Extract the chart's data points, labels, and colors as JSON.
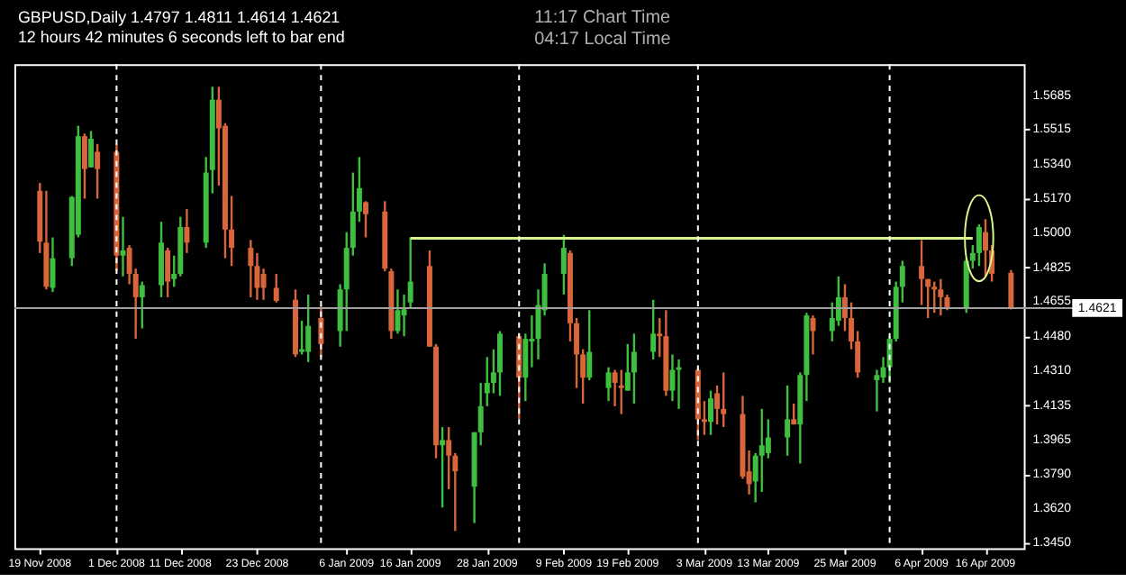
{
  "chart_data": {
    "type": "candlestick",
    "title": "GBPUSD,Daily  1.4797 1.4811 1.4614 1.4621",
    "subtitle": "12 hours 42 minutes 6 seconds left to bar end",
    "annotations": [
      "11:17  Chart Time",
      "04:17  Local Time"
    ],
    "xlim": [
      "2008-11-15",
      "2009-04-22"
    ],
    "xticks": [
      {
        "value": "2008-11-19",
        "label": "19 Nov 2008"
      },
      {
        "value": "2008-12-01",
        "label": "1 Dec 2008"
      },
      {
        "value": "2008-12-11",
        "label": "11 Dec 2008"
      },
      {
        "value": "2008-12-23",
        "label": "23 Dec 2008"
      },
      {
        "value": "2009-01-06",
        "label": "6 Jan 2009"
      },
      {
        "value": "2009-01-16",
        "label": "16 Jan 2009"
      },
      {
        "value": "2009-01-28",
        "label": "28 Jan 2009"
      },
      {
        "value": "2009-02-09",
        "label": "9 Feb 2009"
      },
      {
        "value": "2009-02-19",
        "label": "19 Feb 2009"
      },
      {
        "value": "2009-03-03",
        "label": "3 Mar 2009"
      },
      {
        "value": "2009-03-13",
        "label": "13 Mar 2009"
      },
      {
        "value": "2009-03-25",
        "label": "25 Mar 2009"
      },
      {
        "value": "2009-04-06",
        "label": "6 Apr 2009"
      },
      {
        "value": "2009-04-16",
        "label": "16 Apr 2009"
      }
    ],
    "ylim": [
      1.342,
      1.584
    ],
    "yticks": [
      {
        "value": 1.5685,
        "label": "1.5685"
      },
      {
        "value": 1.5515,
        "label": "1.5515"
      },
      {
        "value": 1.534,
        "label": "1.5340"
      },
      {
        "value": 1.517,
        "label": "1.5170"
      },
      {
        "value": 1.5,
        "label": "1.5000"
      },
      {
        "value": 1.4825,
        "label": "1.4825"
      },
      {
        "value": 1.4655,
        "label": "1.4655"
      },
      {
        "value": 1.448,
        "label": "1.4480"
      },
      {
        "value": 1.431,
        "label": "1.4310"
      },
      {
        "value": 1.4135,
        "label": "1.4135"
      },
      {
        "value": 1.3965,
        "label": "1.3965"
      },
      {
        "value": 1.379,
        "label": "1.3790"
      },
      {
        "value": 1.362,
        "label": "1.3620"
      },
      {
        "value": 1.345,
        "label": "1.3450"
      }
    ],
    "ref_lines": [
      {
        "axis": "y",
        "value": 1.4621,
        "label": "1.4621",
        "color": "#a0a0a0",
        "line_style": "solid"
      },
      {
        "axis": "x",
        "value": "2008-12-01",
        "color": "#ffffff",
        "line_style": "dashed"
      },
      {
        "axis": "x",
        "value": "2009-01-02",
        "color": "#ffffff",
        "line_style": "dashed"
      },
      {
        "axis": "x",
        "value": "2009-02-02",
        "color": "#ffffff",
        "line_style": "dashed"
      },
      {
        "axis": "x",
        "value": "2009-03-02",
        "color": "#ffffff",
        "line_style": "dashed"
      },
      {
        "axis": "x",
        "value": "2009-04-01",
        "color": "#ffffff",
        "line_style": "dashed"
      }
    ],
    "series": [
      {
        "x": [
          "2008-11-19",
          "2008-11-20",
          "2008-11-21",
          "2008-11-24",
          "2008-11-25",
          "2008-11-26",
          "2008-11-27",
          "2008-11-28",
          "2008-12-01",
          "2008-12-02",
          "2008-12-03",
          "2008-12-04",
          "2008-12-05",
          "2008-12-08",
          "2008-12-09",
          "2008-12-10",
          "2008-12-11",
          "2008-12-12",
          "2008-12-15",
          "2008-12-16",
          "2008-12-17",
          "2008-12-18",
          "2008-12-19",
          "2008-12-22",
          "2008-12-23",
          "2008-12-24",
          "2008-12-26",
          "2008-12-29",
          "2008-12-30",
          "2008-12-31",
          "2009-01-02",
          "2009-01-05",
          "2009-01-06",
          "2009-01-07",
          "2009-01-08",
          "2009-01-09",
          "2009-01-12",
          "2009-01-13",
          "2009-01-14",
          "2009-01-15",
          "2009-01-16",
          "2009-01-19",
          "2009-01-20",
          "2009-01-21",
          "2009-01-22",
          "2009-01-23",
          "2009-01-26",
          "2009-01-27",
          "2009-01-28",
          "2009-01-29",
          "2009-01-30",
          "2009-02-02",
          "2009-02-03",
          "2009-02-04",
          "2009-02-05",
          "2009-02-06",
          "2009-02-09",
          "2009-02-10",
          "2009-02-11",
          "2009-02-12",
          "2009-02-13",
          "2009-02-16",
          "2009-02-17",
          "2009-02-18",
          "2009-02-19",
          "2009-02-20",
          "2009-02-23",
          "2009-02-24",
          "2009-02-25",
          "2009-02-26",
          "2009-02-27",
          "2009-03-02",
          "2009-03-03",
          "2009-03-04",
          "2009-03-05",
          "2009-03-06",
          "2009-03-09",
          "2009-03-10",
          "2009-03-11",
          "2009-03-12",
          "2009-03-13",
          "2009-03-16",
          "2009-03-17",
          "2009-03-18",
          "2009-03-19",
          "2009-03-20",
          "2009-03-23",
          "2009-03-24",
          "2009-03-25",
          "2009-03-26",
          "2009-03-27",
          "2009-03-30",
          "2009-03-31",
          "2009-04-01",
          "2009-04-02",
          "2009-04-03",
          "2009-04-06",
          "2009-04-07",
          "2009-04-08",
          "2009-04-09",
          "2009-04-10",
          "2009-04-13",
          "2009-04-14",
          "2009-04-15",
          "2009-04-16",
          "2009-04-17",
          "2009-04-20"
        ],
        "ohlc": [
          [
            1.5207,
            1.5246,
            1.4896,
            1.4953
          ],
          [
            1.4948,
            1.5207,
            1.4714,
            1.4727
          ],
          [
            1.4722,
            1.4974,
            1.4701,
            1.487
          ],
          [
            1.487,
            1.5181,
            1.4831,
            1.5176
          ],
          [
            1.4987,
            1.5532,
            1.4974,
            1.548
          ],
          [
            1.548,
            1.5493,
            1.5168,
            1.5316
          ],
          [
            1.5324,
            1.5506,
            1.5324,
            1.5467
          ],
          [
            1.5402,
            1.5441,
            1.5168,
            1.5316
          ],
          [
            1.5402,
            1.5441,
            1.4805,
            1.4883
          ],
          [
            1.4883,
            1.5077,
            1.4779,
            1.4909
          ],
          [
            1.4922,
            1.4935,
            1.474,
            1.4792
          ],
          [
            1.4792,
            1.4818,
            1.4467,
            1.4675
          ],
          [
            1.4675,
            1.4753,
            1.4519,
            1.4735
          ],
          [
            1.4735,
            1.5052,
            1.4675,
            1.4948
          ],
          [
            1.4909,
            1.4922,
            1.4675,
            1.4753
          ],
          [
            1.4766,
            1.4883,
            1.4727,
            1.4792
          ],
          [
            1.4792,
            1.5077,
            1.4779,
            1.5026
          ],
          [
            1.5026,
            1.5116,
            1.4896,
            1.4948
          ],
          [
            1.4948,
            1.5376,
            1.4922,
            1.5298
          ],
          [
            1.5311,
            1.5727,
            1.5194,
            1.5662
          ],
          [
            1.5662,
            1.5727,
            1.5233,
            1.5519
          ],
          [
            1.5532,
            1.5545,
            1.487,
            1.5013
          ],
          [
            1.5013,
            1.5181,
            1.4831,
            1.4922
          ],
          [
            1.4922,
            1.4961,
            1.4675,
            1.4831
          ],
          [
            1.4831,
            1.4896,
            1.4662,
            1.4722
          ],
          [
            1.4792,
            1.4818,
            1.4662,
            1.4722
          ],
          [
            1.4722,
            1.4792,
            1.4649,
            1.4657
          ],
          [
            1.4662,
            1.4714,
            1.4376,
            1.4389
          ],
          [
            1.4402,
            1.4558,
            1.4389,
            1.4415
          ],
          [
            1.4402,
            1.4688,
            1.4351,
            1.4532
          ],
          [
            1.4571,
            1.4636,
            1.4376,
            1.4441
          ],
          [
            1.4506,
            1.474,
            1.4428,
            1.4714
          ],
          [
            1.4714,
            1.5,
            1.4506,
            1.4922
          ],
          [
            1.4922,
            1.5298,
            1.4883,
            1.5103
          ],
          [
            1.5103,
            1.5376,
            1.5052,
            1.522
          ],
          [
            1.515,
            1.5155,
            1.4974,
            1.509
          ],
          [
            1.5103,
            1.5155,
            1.4805,
            1.4818
          ],
          [
            1.4805,
            1.4818,
            1.4467,
            1.4506
          ],
          [
            1.4506,
            1.4714,
            1.4493,
            1.461
          ],
          [
            1.4584,
            1.4688,
            1.448,
            1.4615
          ],
          [
            1.4649,
            1.4974,
            1.4623,
            1.4753
          ],
          [
            1.4831,
            1.4909,
            1.4428,
            1.4428
          ],
          [
            1.4428,
            1.4441,
            1.387,
            1.3935
          ],
          [
            1.3935,
            1.4026,
            1.3624,
            1.3961
          ],
          [
            1.3961,
            1.4026,
            1.3715,
            1.3883
          ],
          [
            1.3883,
            1.3896,
            1.3507,
            1.3805
          ],
          [
            1.3728,
            1.4,
            1.3546,
            1.4
          ],
          [
            1.4,
            1.4247,
            1.3935,
            1.413
          ],
          [
            1.4195,
            1.4376,
            1.413,
            1.4247
          ],
          [
            1.4247,
            1.4415,
            1.4195,
            1.4299
          ],
          [
            1.4299,
            1.4506,
            1.4182,
            1.4493
          ],
          [
            1.448,
            1.4493,
            1.4065,
            1.4273
          ],
          [
            1.4273,
            1.4493,
            1.4156,
            1.4467
          ],
          [
            1.4454,
            1.4584,
            1.4325,
            1.4467
          ],
          [
            1.4467,
            1.4714,
            1.4364,
            1.4636
          ],
          [
            1.461,
            1.4844,
            1.4584,
            1.4792
          ],
          [
            1.4792,
            1.4987,
            1.4688,
            1.4922
          ],
          [
            1.4896,
            1.4909,
            1.4454,
            1.4545
          ],
          [
            1.4545,
            1.4571,
            1.4221,
            1.4389
          ],
          [
            1.4389,
            1.4415,
            1.4143,
            1.4273
          ],
          [
            1.4273,
            1.461,
            1.426,
            1.4402
          ],
          [
            1.4221,
            1.4325,
            1.4156,
            1.4299
          ],
          [
            1.4299,
            1.4312,
            1.413,
            1.4247
          ],
          [
            1.4234,
            1.4312,
            1.4091,
            1.4221
          ],
          [
            1.4208,
            1.4441,
            1.4208,
            1.4299
          ],
          [
            1.4299,
            1.4493,
            1.4143,
            1.4402
          ],
          [
            1.4402,
            1.4662,
            1.4364,
            1.4493
          ],
          [
            1.4493,
            1.4571,
            1.4376,
            1.448
          ],
          [
            1.448,
            1.461,
            1.4182,
            1.4208
          ],
          [
            1.4208,
            1.4389,
            1.4156,
            1.4312
          ],
          [
            1.4312,
            1.4364,
            1.4117,
            1.4325
          ],
          [
            1.4312,
            1.4325,
            1.3961,
            1.4065
          ],
          [
            1.4065,
            1.4156,
            1.3987,
            1.4052
          ],
          [
            1.4052,
            1.4208,
            1.3987,
            1.4169
          ],
          [
            1.4195,
            1.4234,
            1.4039,
            1.4117
          ],
          [
            1.4117,
            1.4299,
            1.4026,
            1.4091
          ],
          [
            1.4091,
            1.4182,
            1.3767,
            1.3779
          ],
          [
            1.3805,
            1.3909,
            1.3689,
            1.3741
          ],
          [
            1.3754,
            1.3896,
            1.365,
            1.3883
          ],
          [
            1.3883,
            1.4117,
            1.3702,
            1.3935
          ],
          [
            1.3896,
            1.4065,
            1.387,
            1.3974
          ],
          [
            1.3974,
            1.4234,
            1.3883,
            1.4065
          ],
          [
            1.4065,
            1.4143,
            1.4039,
            1.4039
          ],
          [
            1.4039,
            1.4299,
            1.3844,
            1.4286
          ],
          [
            1.4286,
            1.4597,
            1.4156,
            1.4584
          ],
          [
            1.4571,
            1.4584,
            1.4389,
            1.4506
          ],
          [
            1.4506,
            1.4649,
            1.4454,
            1.4571
          ],
          [
            1.4558,
            1.4779,
            1.4532,
            1.4675
          ],
          [
            1.4675,
            1.474,
            1.4506,
            1.4571
          ],
          [
            1.4571,
            1.4649,
            1.4415,
            1.4454
          ],
          [
            1.4454,
            1.4506,
            1.4273,
            1.4299
          ],
          [
            1.426,
            1.4312,
            1.4104,
            1.4286
          ],
          [
            1.4273,
            1.4376,
            1.4247,
            1.4325
          ],
          [
            1.4325,
            1.448,
            1.4247,
            1.4467
          ],
          [
            1.4467,
            1.4753,
            1.4454,
            1.4727
          ],
          [
            1.4727,
            1.4857,
            1.4649,
            1.4831
          ],
          [
            1.4831,
            1.4961,
            1.4636,
            1.4766
          ],
          [
            1.4766,
            1.4766,
            1.4571,
            1.4727
          ],
          [
            1.4727,
            1.4753,
            1.4597,
            1.4714
          ],
          [
            1.4714,
            1.4766,
            1.4584,
            1.4675
          ],
          [
            1.4675,
            1.4688,
            1.461,
            1.4623
          ],
          [
            1.4623,
            1.487,
            1.4597,
            1.4857
          ],
          [
            1.4857,
            1.4935,
            1.4818,
            1.4896
          ],
          [
            1.4896,
            1.5039,
            1.4831,
            1.5026
          ],
          [
            1.5,
            1.5065,
            1.4779,
            1.4909
          ],
          [
            1.4909,
            1.4935,
            1.4753,
            1.4792
          ],
          [
            1.4797,
            1.4811,
            1.4614,
            1.4621
          ]
        ],
        "colors": [
          "#d9653b",
          "#d9653b",
          "#3fbf3f",
          "#3fbf3f",
          "#3fbf3f",
          "#d9653b",
          "#3fbf3f",
          "#d9653b",
          "#d9653b",
          "#3fbf3f",
          "#d9653b",
          "#d9653b",
          "#3fbf3f",
          "#3fbf3f",
          "#d9653b",
          "#3fbf3f",
          "#3fbf3f",
          "#d9653b",
          "#3fbf3f",
          "#3fbf3f",
          "#d9653b",
          "#d9653b",
          "#d9653b",
          "#d9653b",
          "#d9653b",
          "#d9653b",
          "#d9653b",
          "#d9653b",
          "#3fbf3f",
          "#3fbf3f",
          "#d9653b",
          "#3fbf3f",
          "#3fbf3f",
          "#3fbf3f",
          "#3fbf3f",
          "#d9653b",
          "#d9653b",
          "#d9653b",
          "#3fbf3f",
          "#3fbf3f",
          "#3fbf3f",
          "#d9653b",
          "#d9653b",
          "#3fbf3f",
          "#d9653b",
          "#d9653b",
          "#3fbf3f",
          "#3fbf3f",
          "#3fbf3f",
          "#3fbf3f",
          "#3fbf3f",
          "#d9653b",
          "#3fbf3f",
          "#3fbf3f",
          "#3fbf3f",
          "#3fbf3f",
          "#3fbf3f",
          "#d9653b",
          "#d9653b",
          "#d9653b",
          "#3fbf3f",
          "#3fbf3f",
          "#d9653b",
          "#d9653b",
          "#3fbf3f",
          "#3fbf3f",
          "#3fbf3f",
          "#d9653b",
          "#d9653b",
          "#3fbf3f",
          "#3fbf3f",
          "#d9653b",
          "#d9653b",
          "#3fbf3f",
          "#d9653b",
          "#d9653b",
          "#d9653b",
          "#d9653b",
          "#3fbf3f",
          "#3fbf3f",
          "#3fbf3f",
          "#3fbf3f",
          "#d9653b",
          "#3fbf3f",
          "#3fbf3f",
          "#d9653b",
          "#3fbf3f",
          "#3fbf3f",
          "#d9653b",
          "#d9653b",
          "#d9653b",
          "#3fbf3f",
          "#3fbf3f",
          "#3fbf3f",
          "#3fbf3f",
          "#3fbf3f",
          "#d9653b",
          "#d9653b",
          "#d9653b",
          "#d9653b",
          "#d9653b",
          "#3fbf3f",
          "#3fbf3f",
          "#3fbf3f",
          "#d9653b",
          "#d9653b",
          "#d9653b"
        ]
      },
      {
        "type": "line",
        "x": [
          "2009-01-16",
          "2009-04-14"
        ],
        "values": [
          1.497,
          1.497
        ],
        "color": "#d8f58a"
      }
    ]
  }
}
